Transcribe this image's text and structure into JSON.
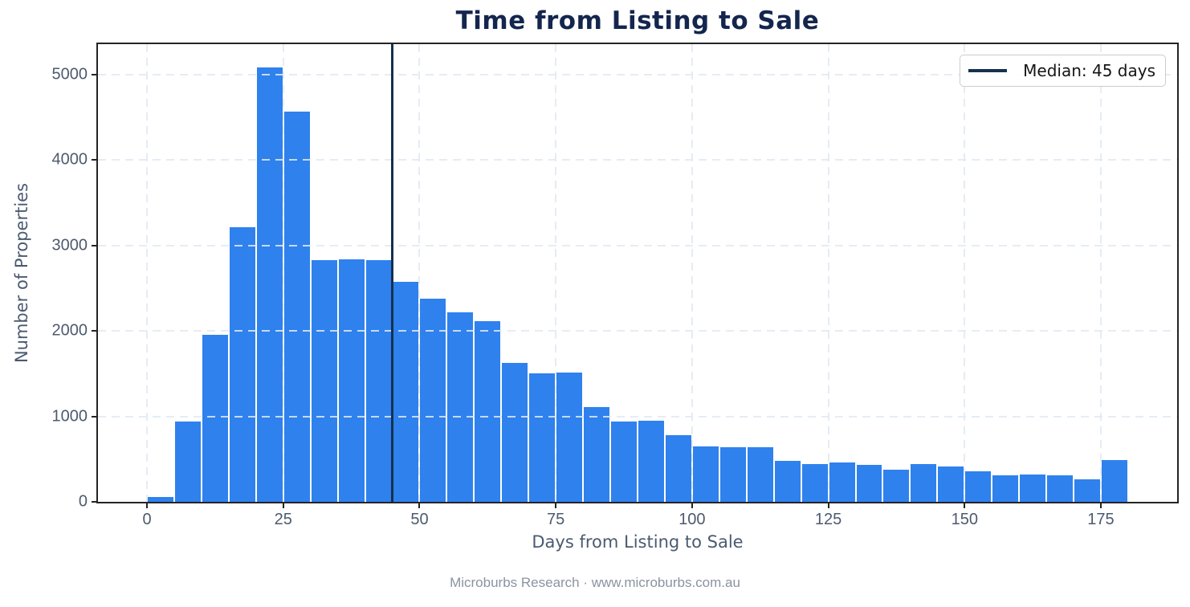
{
  "title": "Time from Listing to Sale",
  "footer": "Microburbs Research · www.microburbs.com.au",
  "legend": {
    "label": "Median: 45 days"
  },
  "colors": {
    "title": "#14264e",
    "axis_label": "#4a5a70",
    "tick_label": "#4d5a6e",
    "footer": "#8b93a2",
    "bar": "#2f81ed",
    "bar_edge": "#ffffff",
    "median": "#15304f",
    "grid": "rgba(226,233,242,0.85)",
    "spine": "#242424",
    "legend_border": "#cccccc",
    "legend_text": "#151515"
  },
  "chart_data": {
    "type": "bar",
    "subtype": "histogram",
    "title": "Time from Listing to Sale",
    "xlabel": "Days from Listing to Sale",
    "ylabel": "Number of Properties",
    "bin_start": 0,
    "bin_width": 5,
    "values": [
      70,
      945,
      1965,
      3220,
      5095,
      4580,
      2840,
      2850,
      2835,
      2580,
      2385,
      2225,
      2120,
      1635,
      1515,
      1525,
      1120,
      945,
      955,
      790,
      655,
      645,
      645,
      485,
      455,
      470,
      440,
      385,
      450,
      425,
      370,
      320,
      330,
      320,
      275,
      500
    ],
    "bin_ranges_days": [
      "0-5",
      "5-10",
      "10-15",
      "15-20",
      "20-25",
      "25-30",
      "30-35",
      "35-40",
      "40-45",
      "45-50",
      "50-55",
      "55-60",
      "60-65",
      "65-70",
      "70-75",
      "75-80",
      "80-85",
      "85-90",
      "90-95",
      "95-100",
      "100-105",
      "105-110",
      "110-115",
      "115-120",
      "120-125",
      "125-130",
      "130-135",
      "135-140",
      "140-145",
      "145-150",
      "150-155",
      "155-160",
      "160-165",
      "165-170",
      "170-175",
      "175-180"
    ],
    "median_days": 45,
    "xlim": [
      -9,
      189
    ],
    "ylim": [
      0,
      5355
    ],
    "xticks": [
      0,
      25,
      50,
      75,
      100,
      125,
      150,
      175
    ],
    "yticks": [
      0,
      1000,
      2000,
      3000,
      4000,
      5000
    ],
    "grid": true,
    "grid_style": "dashed",
    "legend_position": "upper right",
    "legend_entries": [
      "Median: 45 days"
    ]
  }
}
